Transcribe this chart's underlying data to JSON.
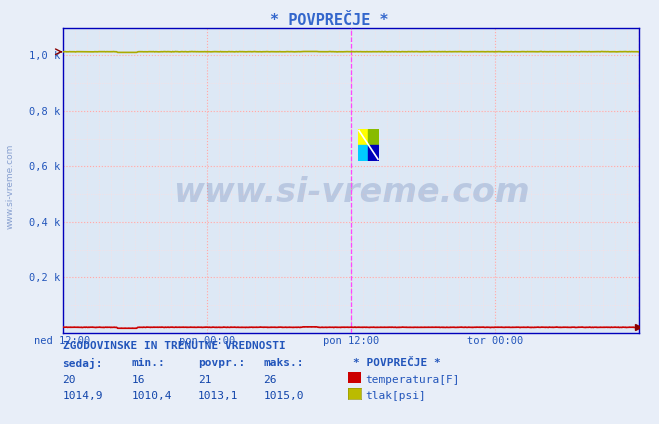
{
  "title": "* POVPREČJE *",
  "title_color": "#3366cc",
  "fig_bg_color": "#e8eef8",
  "plot_bg_color": "#dde8f5",
  "grid_major_color": "#ffaaaa",
  "grid_minor_color": "#ffdddd",
  "ylim": [
    0,
    1100
  ],
  "yticks": [
    200,
    400,
    600,
    800,
    1000
  ],
  "ytick_labels": [
    "0,2 k",
    "0,4 k",
    "0,6 k",
    "0,8 k",
    "1,0 k"
  ],
  "xtick_labels": [
    "ned 12:00",
    "pon 00:00",
    "pon 12:00",
    "tor 00:00",
    ""
  ],
  "xtick_positions": [
    0,
    144,
    288,
    432,
    576
  ],
  "total_points": 576,
  "watermark": "www.si-vreme.com",
  "watermark_color": "#3a5a9a",
  "temp_color": "#cc0000",
  "temp_dotted_color": "#dd6666",
  "tlak_color": "#aaaa00",
  "border_color": "#0000bb",
  "label_color": "#2255bb",
  "vert_line_color": "#ff44ff",
  "stats_header": "ZGODOVINSKE IN TRENUTNE VREDNOSTI",
  "stats_cols": [
    "sedaj:",
    "min.:",
    "povpr.:",
    "maks.:"
  ],
  "temp_vals": [
    "20",
    "16",
    "21",
    "26"
  ],
  "tlak_vals": [
    "1014,9",
    "1010,4",
    "1013,1",
    "1015,0"
  ],
  "temp_label": "temperatura[F]",
  "tlak_label": "tlak[psi]",
  "legend_title": "* POVPREČJE *",
  "temp_swatch_color": "#cc0000",
  "tlak_swatch_color": "#bbbb00",
  "watermark_fontsize": 24,
  "title_fontsize": 11,
  "tick_fontsize": 7.5,
  "stats_fontsize": 8
}
